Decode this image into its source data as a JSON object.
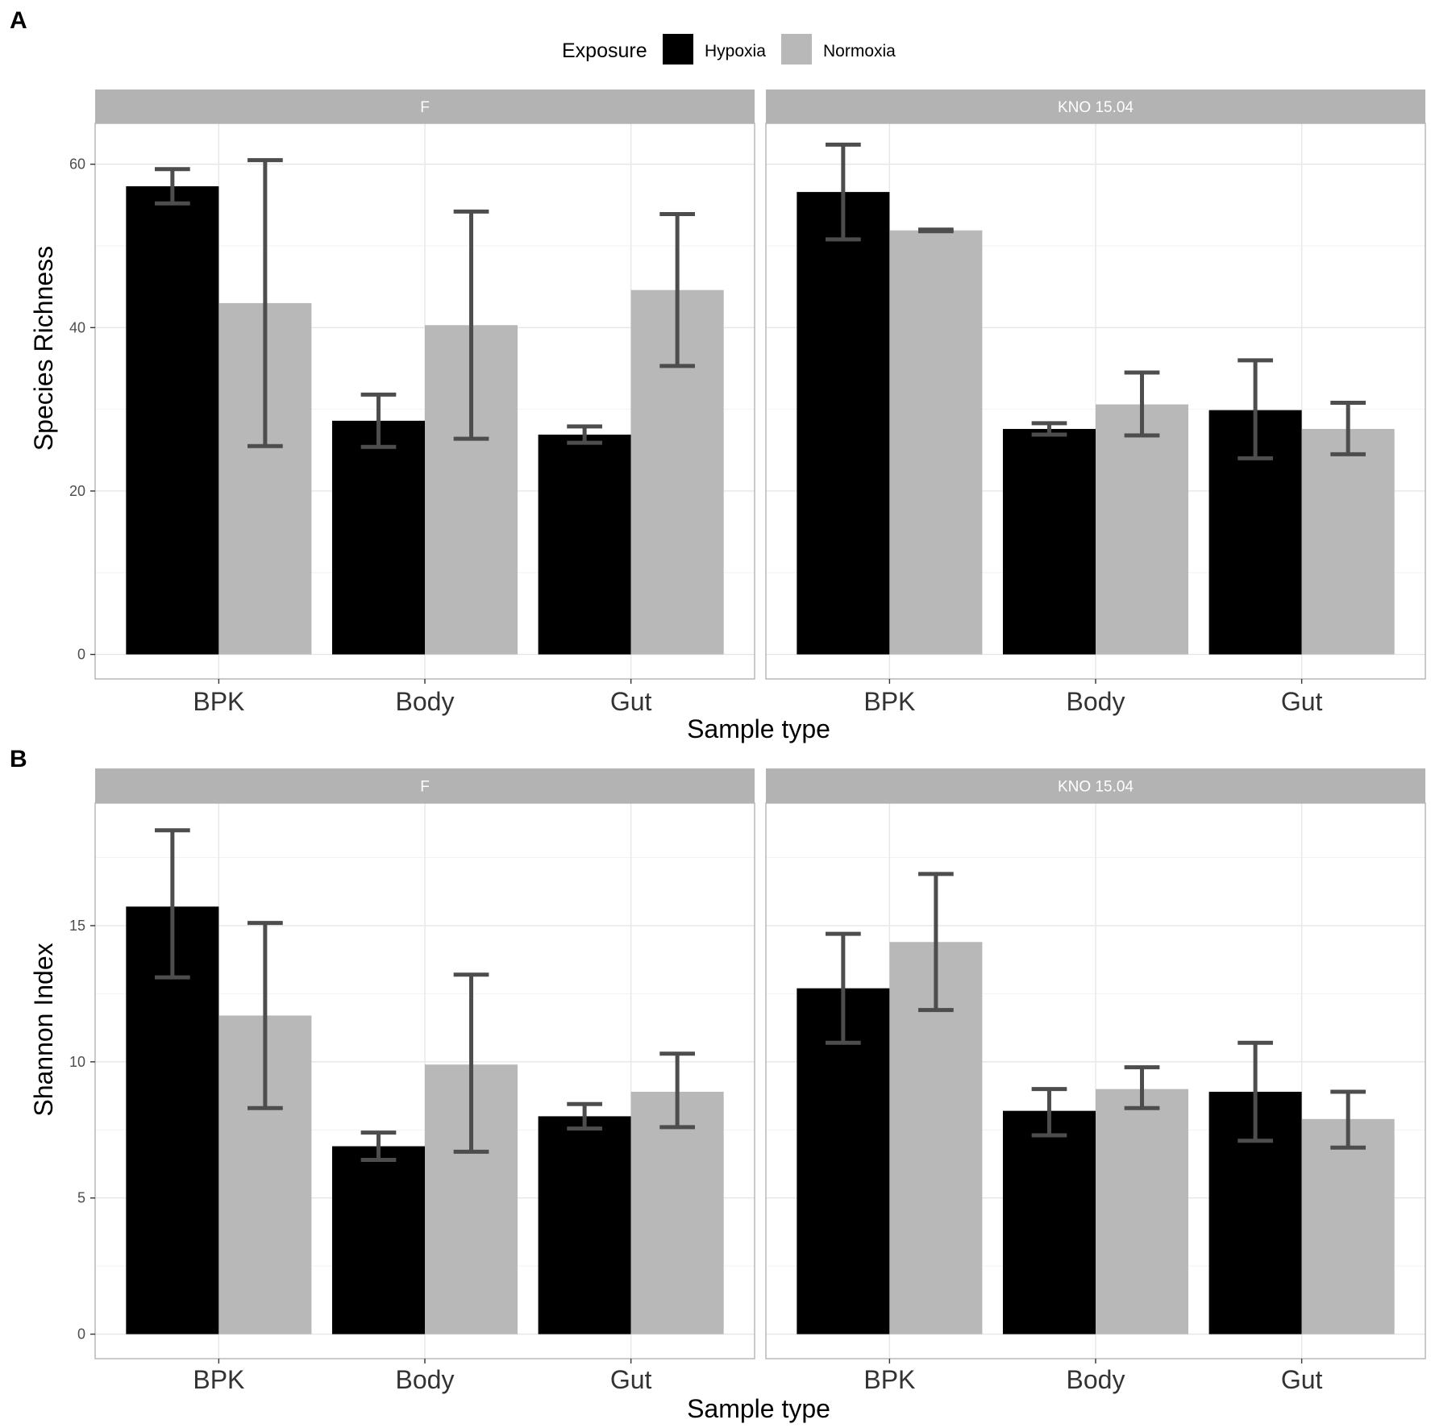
{
  "legend": {
    "title": "Exposure",
    "items": [
      {
        "label": "Hypoxia",
        "color": "#000000"
      },
      {
        "label": "Normoxia",
        "color": "#b8b8b8"
      }
    ]
  },
  "style": {
    "strip_color": "#b3b3b3",
    "grid_major": "#e6e6e6",
    "grid_minor": "#f2f2f2",
    "border": "#b3b3b3",
    "errorbar": "#4d4d4d"
  },
  "chart_data": [
    {
      "panel_letter": "A",
      "type": "bar",
      "title": "",
      "xlabel": "Sample type",
      "ylabel": "Species Richness",
      "ylim": [
        -3,
        65
      ],
      "yticks": [
        0,
        20,
        40,
        60
      ],
      "grid": true,
      "categories": [
        "BPK",
        "Body",
        "Gut"
      ],
      "facets": [
        {
          "label": "F",
          "series": [
            {
              "name": "Hypoxia",
              "values": [
                57.3,
                28.6,
                26.9
              ],
              "err_low": [
                55.2,
                25.4,
                25.9
              ],
              "err_high": [
                59.4,
                31.8,
                27.9
              ]
            },
            {
              "name": "Normoxia",
              "values": [
                43.0,
                40.3,
                44.6
              ],
              "err_low": [
                25.5,
                26.4,
                35.3
              ],
              "err_high": [
                60.5,
                54.2,
                53.9
              ]
            }
          ]
        },
        {
          "label": "KNO 15.04",
          "series": [
            {
              "name": "Hypoxia",
              "values": [
                56.6,
                27.6,
                29.9
              ],
              "err_low": [
                50.8,
                26.9,
                24.0
              ],
              "err_high": [
                62.4,
                28.3,
                36.0
              ]
            },
            {
              "name": "Normoxia",
              "values": [
                51.9,
                30.6,
                27.6
              ],
              "err_low": [
                51.8,
                26.8,
                24.5
              ],
              "err_high": [
                52.0,
                34.5,
                30.8
              ]
            }
          ]
        }
      ]
    },
    {
      "panel_letter": "B",
      "type": "bar",
      "title": "",
      "xlabel": "Sample type",
      "ylabel": "Shannon Index",
      "ylim": [
        -0.9,
        19.5
      ],
      "yticks": [
        0,
        5,
        10,
        15
      ],
      "grid": true,
      "categories": [
        "BPK",
        "Body",
        "Gut"
      ],
      "facets": [
        {
          "label": "F",
          "series": [
            {
              "name": "Hypoxia",
              "values": [
                15.7,
                6.9,
                8.0
              ],
              "err_low": [
                13.1,
                6.4,
                7.55
              ],
              "err_high": [
                18.5,
                7.4,
                8.45
              ]
            },
            {
              "name": "Normoxia",
              "values": [
                11.7,
                9.9,
                8.9
              ],
              "err_low": [
                8.3,
                6.7,
                7.6
              ],
              "err_high": [
                15.1,
                13.2,
                10.3
              ]
            }
          ]
        },
        {
          "label": "KNO 15.04",
          "series": [
            {
              "name": "Hypoxia",
              "values": [
                12.7,
                8.2,
                8.9
              ],
              "err_low": [
                10.7,
                7.3,
                7.1
              ],
              "err_high": [
                14.7,
                9.0,
                10.7
              ]
            },
            {
              "name": "Normoxia",
              "values": [
                14.4,
                9.0,
                7.9
              ],
              "err_low": [
                11.9,
                8.3,
                6.85
              ],
              "err_high": [
                16.9,
                9.8,
                8.9
              ]
            }
          ]
        }
      ]
    }
  ]
}
